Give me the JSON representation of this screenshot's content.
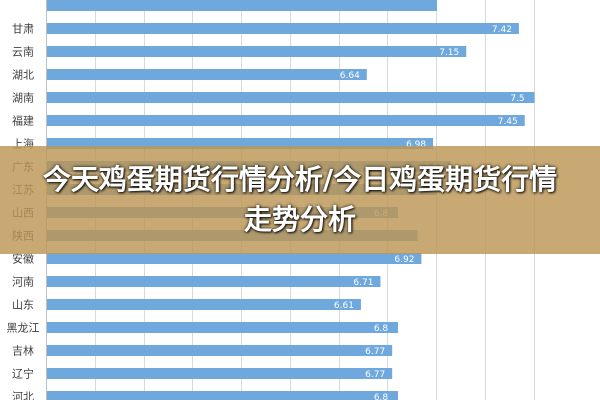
{
  "chart_data": {
    "type": "bar",
    "orientation": "horizontal",
    "categories": [
      "",
      "甘肃",
      "云南",
      "湖北",
      "湖南",
      "福建",
      "上海",
      "广东",
      "江苏",
      "山西",
      "陕西",
      "安徽",
      "河南",
      "山东",
      "黑龙江",
      "吉林",
      "辽宁",
      "河北"
    ],
    "values": [
      7.0,
      7.42,
      7.15,
      6.64,
      7.5,
      7.45,
      6.98,
      7.07,
      7.0,
      6.8,
      6.9,
      6.92,
      6.71,
      6.61,
      6.8,
      6.77,
      6.77,
      6.8
    ],
    "value_labels": [
      "",
      "7.42",
      "7.15",
      "6.64",
      "7.5",
      "7.45",
      "6.98",
      "7.07",
      "",
      "6.8",
      "",
      "6.92",
      "6.71",
      "6.61",
      "6.8",
      "6.77",
      "6.77",
      "6.8"
    ],
    "bar_color": "#6fa8dc",
    "grid": true
  },
  "banner": {
    "text": "今天鸡蛋期货行情分析/今日鸡蛋期货行情走势分析",
    "bg_color": "#bc9654"
  }
}
